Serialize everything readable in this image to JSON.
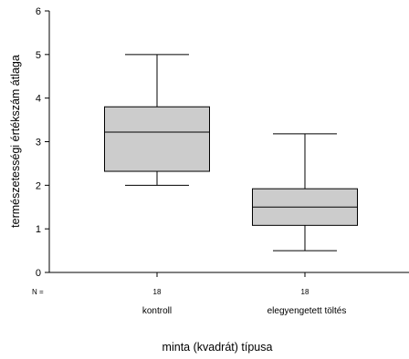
{
  "chart_data": {
    "type": "box",
    "xlabel": "minta (kvadrát) típusa",
    "ylabel": "természetességi értékszám átlaga",
    "ylim": [
      0,
      6
    ],
    "yticks": [
      0,
      1,
      2,
      3,
      4,
      5,
      6
    ],
    "grid": false,
    "n_label": "N =",
    "categories": [
      "kontroll",
      "elegyengetett töltés"
    ],
    "n": [
      "18",
      "18"
    ],
    "boxes": [
      {
        "whisker_low": 2.0,
        "q1": 2.32,
        "median": 3.22,
        "q3": 3.8,
        "whisker_high": 5.0
      },
      {
        "whisker_low": 0.5,
        "q1": 1.08,
        "median": 1.5,
        "q3": 1.92,
        "whisker_high": 3.18
      }
    ],
    "box_color": "#cccccc"
  }
}
